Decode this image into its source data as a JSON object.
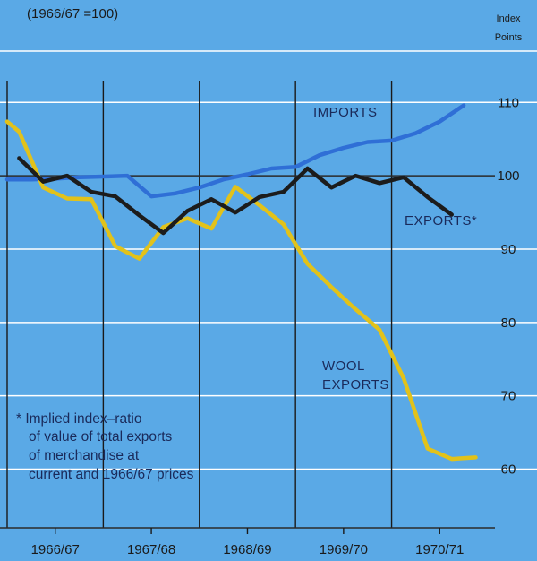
{
  "chart_data": {
    "type": "line",
    "title": "",
    "base_note": "(1966/67 =100)",
    "ylabel": [
      "Index",
      "Points"
    ],
    "ylim": [
      52,
      117
    ],
    "yticks": [
      60,
      70,
      80,
      90,
      100,
      110
    ],
    "baseline": 100,
    "xlim": [
      0,
      20.3
    ],
    "x_categories": [
      "1966/67",
      "1967/68",
      "1968/69",
      "1969/70",
      "1970/71"
    ],
    "grid": true,
    "series": [
      {
        "name": "IMPORTS",
        "color": "#2f6fd6",
        "points": [
          [
            0,
            99.5
          ],
          [
            1,
            99.5
          ],
          [
            2,
            99.6
          ],
          [
            3,
            99.8
          ],
          [
            4,
            99.9
          ],
          [
            5,
            100.0
          ],
          [
            6,
            97.2
          ],
          [
            7,
            97.6
          ],
          [
            8,
            98.4
          ],
          [
            9,
            99.5
          ],
          [
            10,
            100.2
          ],
          [
            11,
            101.0
          ],
          [
            12,
            101.2
          ],
          [
            13,
            102.8
          ],
          [
            14,
            103.8
          ],
          [
            15,
            104.6
          ],
          [
            16,
            104.8
          ],
          [
            17,
            105.8
          ],
          [
            18,
            107.4
          ],
          [
            19,
            109.6
          ]
        ]
      },
      {
        "name": "EXPORTS*",
        "color": "#1c1c1c",
        "points": [
          [
            0.5,
            102.4
          ],
          [
            1.5,
            99.2
          ],
          [
            2.5,
            100.0
          ],
          [
            3.5,
            97.8
          ],
          [
            4.5,
            97.2
          ],
          [
            5.5,
            94.6
          ],
          [
            6.5,
            92.2
          ],
          [
            7.5,
            95.2
          ],
          [
            8.5,
            96.8
          ],
          [
            9.5,
            95.0
          ],
          [
            10.5,
            97.1
          ],
          [
            11.5,
            97.8
          ],
          [
            12.5,
            101.0
          ],
          [
            13.5,
            98.4
          ],
          [
            14.5,
            100.0
          ],
          [
            15.5,
            99.0
          ],
          [
            16.5,
            99.8
          ],
          [
            17.5,
            97.1
          ],
          [
            18.5,
            94.7
          ]
        ]
      },
      {
        "name": "WOOL EXPORTS",
        "color": "#e2c21a",
        "points": [
          [
            0,
            107.4
          ],
          [
            0.5,
            106.0
          ],
          [
            1.5,
            98.4
          ],
          [
            2.5,
            96.9
          ],
          [
            3.5,
            96.8
          ],
          [
            4.5,
            90.4
          ],
          [
            5.5,
            88.7
          ],
          [
            6.5,
            93.0
          ],
          [
            7.5,
            94.2
          ],
          [
            8.5,
            92.8
          ],
          [
            9.5,
            98.5
          ],
          [
            10.5,
            96.0
          ],
          [
            11.5,
            93.4
          ],
          [
            12.5,
            88.0
          ],
          [
            13.5,
            84.8
          ],
          [
            14.5,
            81.8
          ],
          [
            15.5,
            79.0
          ],
          [
            16.5,
            72.4
          ],
          [
            17.5,
            62.8
          ],
          [
            18.5,
            61.4
          ],
          [
            19.5,
            61.6
          ]
        ]
      }
    ],
    "labels": {
      "imports": "IMPORTS",
      "exports": "EXPORTS*",
      "wool_line1": "WOOL",
      "wool_line2": "EXPORTS"
    },
    "footnote": [
      "* Implied index–ratio",
      "of value of total exports",
      "of merchandise at",
      "current and 1966/67 prices"
    ]
  }
}
